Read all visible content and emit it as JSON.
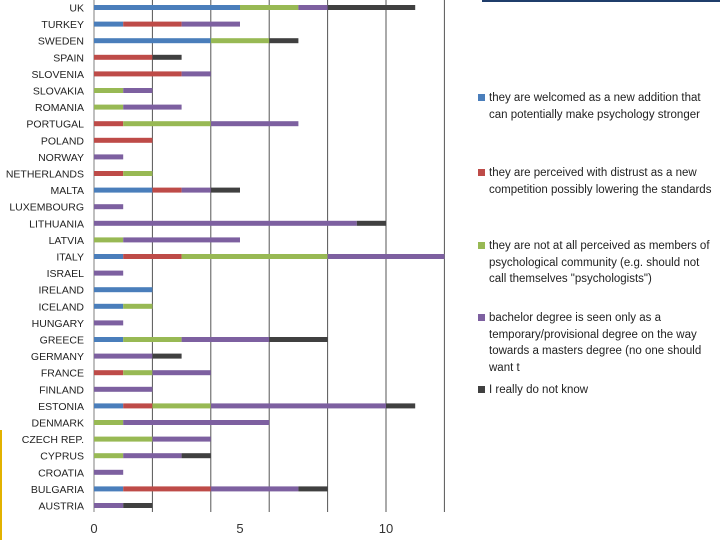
{
  "chart_data": {
    "type": "bar",
    "orientation": "horizontal",
    "stacked": true,
    "categories": [
      "UK",
      "TURKEY",
      "SWEDEN",
      "SPAIN",
      "SLOVENIA",
      "SLOVAKIA",
      "ROMANIA",
      "PORTUGAL",
      "POLAND",
      "NORWAY",
      "NETHERLANDS",
      "MALTA",
      "LUXEMBOURG",
      "LITHUANIA",
      "LATVIA",
      "ITALY",
      "ISRAEL",
      "IRELAND",
      "ICELAND",
      "HUNGARY",
      "GREECE",
      "GERMANY",
      "FRANCE",
      "FINLAND",
      "ESTONIA",
      "DENMARK",
      "CZECH REP.",
      "CYPRUS",
      "CROATIA",
      "BULGARIA",
      "AUSTRIA"
    ],
    "series": [
      {
        "name": "they are welcomed as a new addition that can potentially make psychology stronger",
        "color": "#4a7ebb",
        "values": [
          5,
          1,
          4,
          0,
          0,
          0,
          0,
          0,
          0,
          0,
          0,
          2,
          0,
          0,
          0,
          1,
          0,
          2,
          1,
          0,
          1,
          0,
          0,
          0,
          1,
          0,
          0,
          0,
          0,
          1,
          0
        ]
      },
      {
        "name": "they are perceived with distrust as a new competition possibly lowering the standards",
        "color": "#be4b48",
        "values": [
          0,
          2,
          0,
          2,
          3,
          0,
          0,
          1,
          2,
          0,
          1,
          1,
          0,
          0,
          0,
          2,
          0,
          0,
          0,
          0,
          0,
          0,
          1,
          0,
          1,
          0,
          0,
          0,
          0,
          3,
          0
        ]
      },
      {
        "name": "they are not at all perceived as members of psychological community (e.g. should not call themselves \"psychologists\")",
        "color": "#98b954",
        "values": [
          2,
          0,
          2,
          0,
          0,
          1,
          1,
          3,
          0,
          0,
          1,
          0,
          0,
          0,
          1,
          5,
          0,
          0,
          1,
          0,
          2,
          0,
          1,
          0,
          2,
          1,
          2,
          1,
          0,
          0,
          0
        ]
      },
      {
        "name": "bachelor degree is seen only as a temporary/provisional degree on the way towards a masters degree (no one should want t",
        "color": "#7d60a0",
        "values": [
          1,
          2,
          0,
          0,
          1,
          1,
          2,
          3,
          0,
          1,
          0,
          1,
          1,
          9,
          4,
          4,
          1,
          0,
          0,
          1,
          3,
          2,
          2,
          2,
          6,
          5,
          2,
          2,
          1,
          3,
          1
        ]
      },
      {
        "name": "I really do not know",
        "color": "#404040",
        "values": [
          3,
          0,
          1,
          1,
          0,
          0,
          0,
          0,
          0,
          0,
          0,
          1,
          0,
          1,
          0,
          0,
          0,
          0,
          0,
          0,
          2,
          1,
          0,
          0,
          1,
          0,
          0,
          1,
          0,
          1,
          1
        ]
      }
    ],
    "x_ticks": [
      "0",
      "5",
      "10"
    ],
    "xlim": [
      0,
      12
    ],
    "grid": true,
    "legend_position": "right"
  }
}
